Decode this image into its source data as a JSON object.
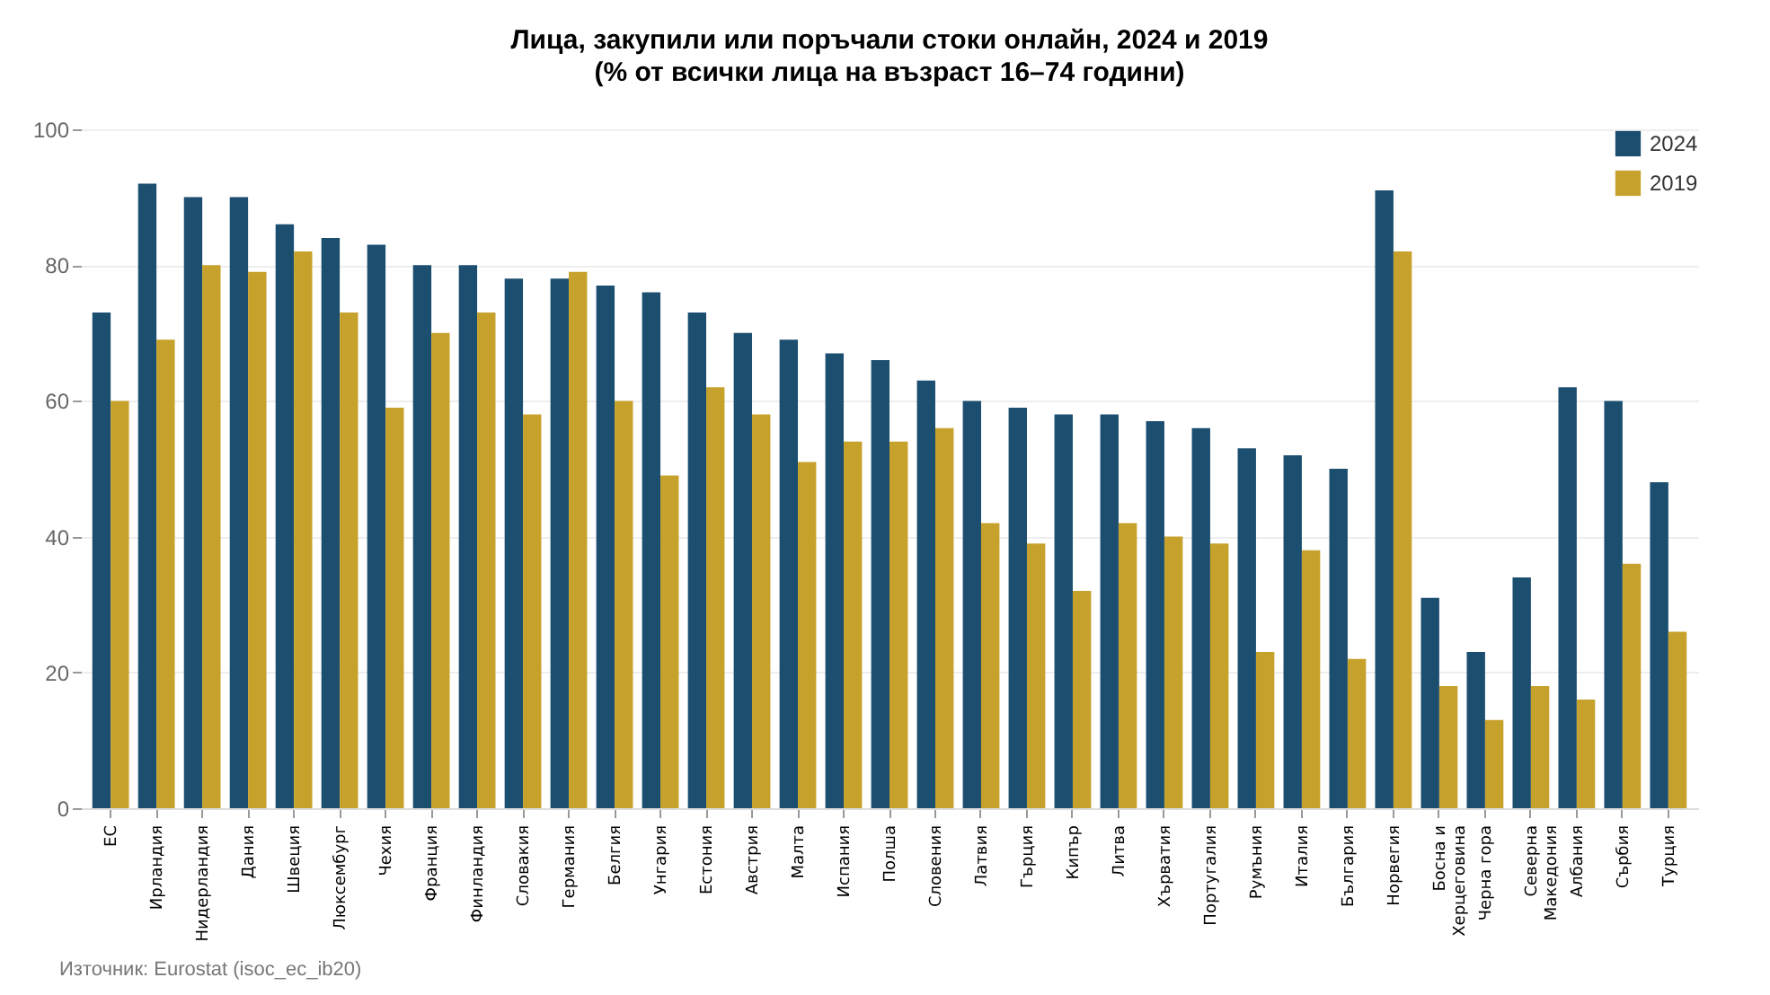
{
  "chart_data": {
    "type": "bar",
    "title": "Лица, закупили или поръчали стоки онлайн, 2024 и 2019",
    "subtitle": "(% от всички лица на възраст 16–74 години)",
    "categories": [
      "ЕС",
      "Ирландия",
      "Нидерландия",
      "Дания",
      "Швеция",
      "Люксембург",
      "Чехия",
      "Франция",
      "Финландия",
      "Словакия",
      "Германия",
      "Белгия",
      "Унгария",
      "Естония",
      "Австрия",
      "Малта",
      "Испания",
      "Полша",
      "Словения",
      "Латвия",
      "Гърция",
      "Кипър",
      "Литва",
      "Хърватия",
      "Португалия",
      "Румъния",
      "Италия",
      "България",
      "Норвегия",
      "Босна и Херцеговина",
      "Черна гора",
      "Северна Македония",
      "Албания",
      "Сърбия",
      "Турция"
    ],
    "series": [
      {
        "name": "2024",
        "color": "#1c4e70",
        "values": [
          73,
          92,
          90,
          90,
          86,
          84,
          83,
          80,
          80,
          78,
          78,
          77,
          76,
          73,
          70,
          69,
          67,
          66,
          63,
          60,
          59,
          58,
          58,
          57,
          56,
          53,
          52,
          50,
          91,
          31,
          23,
          34,
          62,
          60,
          48
        ]
      },
      {
        "name": "2019",
        "color": "#c6a12b",
        "values": [
          60,
          69,
          80,
          79,
          82,
          73,
          59,
          70,
          73,
          58,
          79,
          60,
          49,
          62,
          58,
          51,
          54,
          54,
          56,
          42,
          39,
          32,
          42,
          40,
          39,
          23,
          38,
          22,
          82,
          18,
          13,
          18,
          16,
          36,
          26
        ]
      }
    ],
    "ylim": [
      0,
      100
    ],
    "yticks": [
      0,
      20,
      40,
      60,
      80,
      100
    ],
    "grid": "y",
    "legend": "top right",
    "annotations": [
      "Източник: Eurostat (isoc_ec_ib20)"
    ]
  }
}
